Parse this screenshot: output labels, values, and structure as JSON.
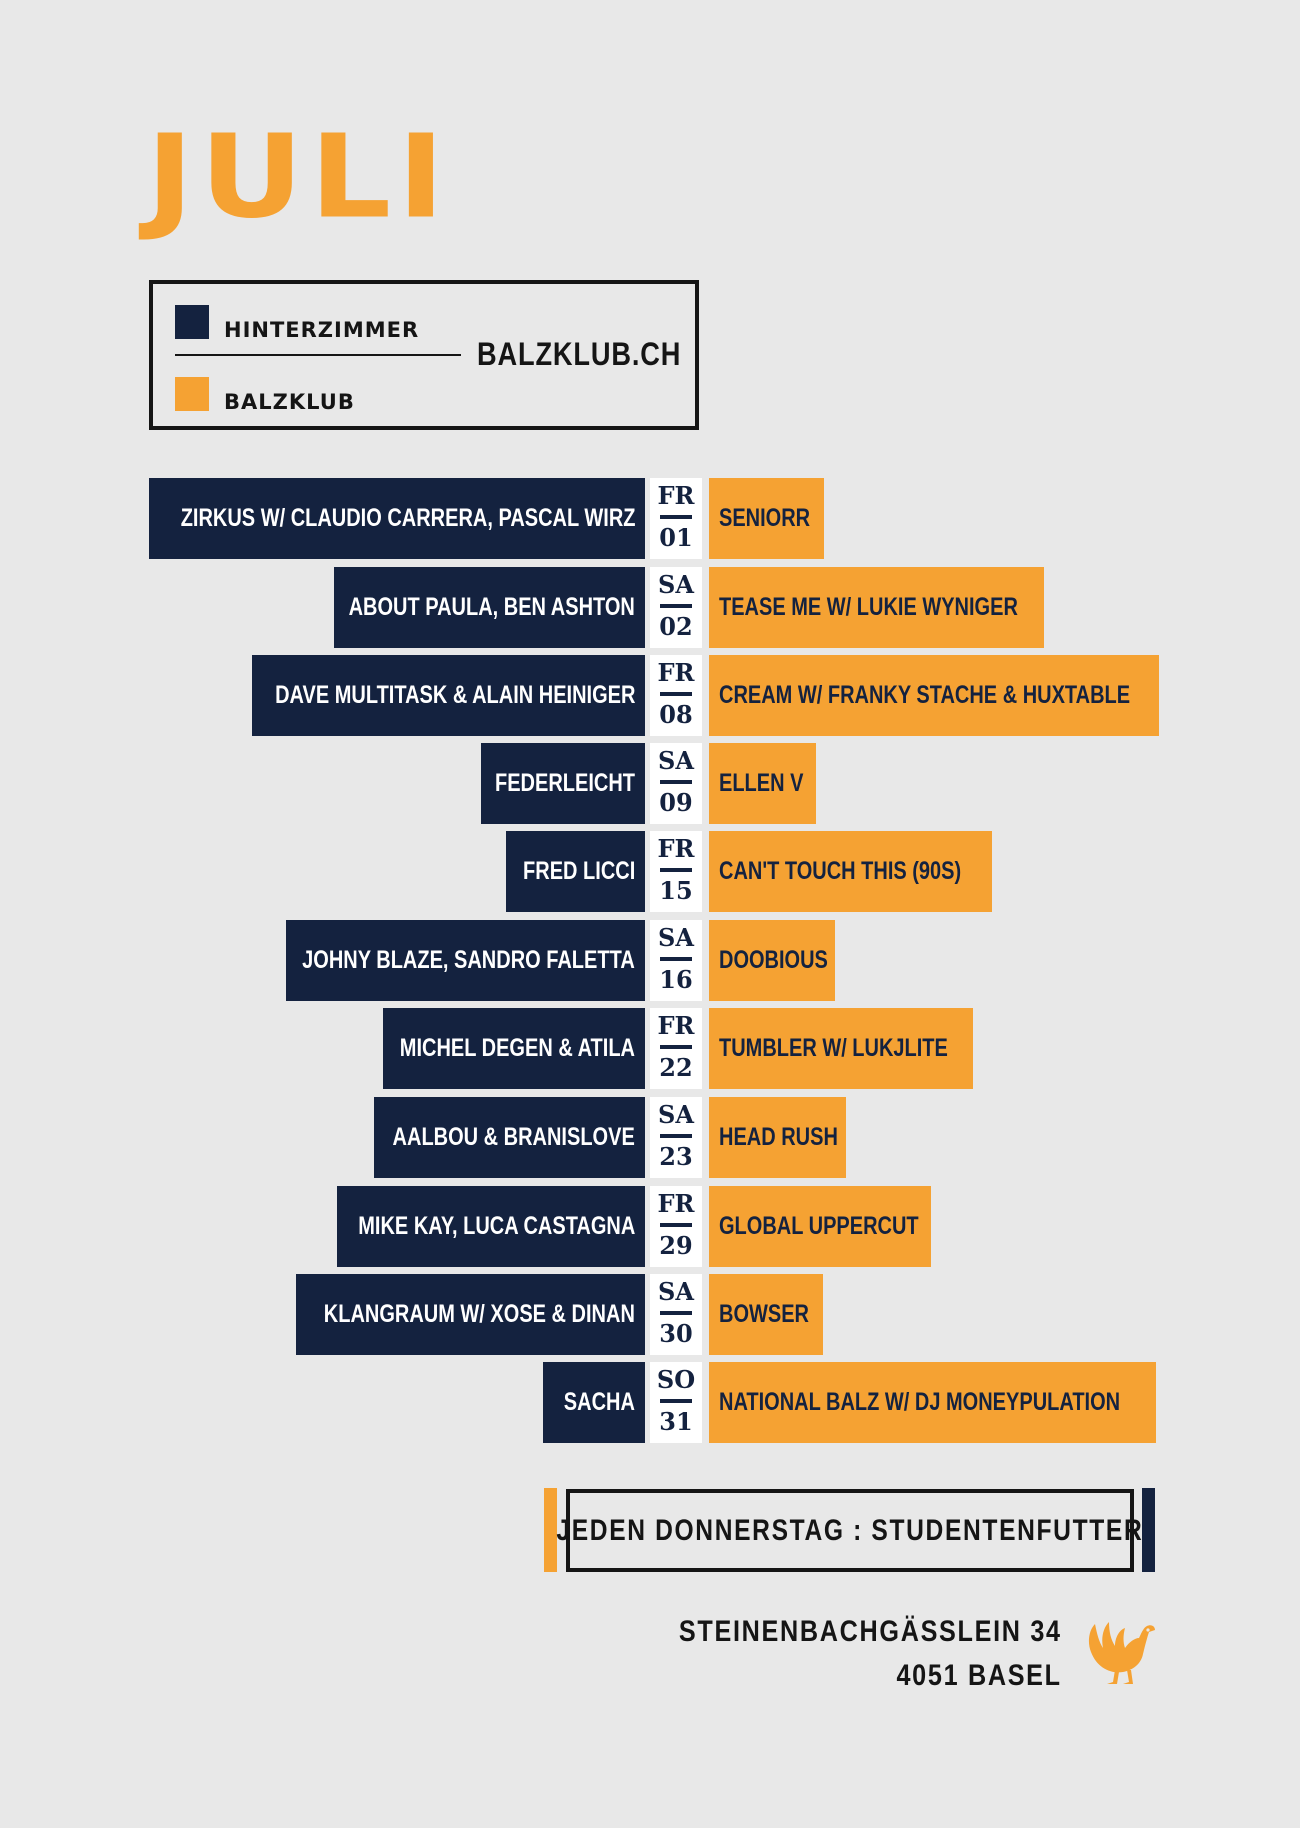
{
  "month": "JULI",
  "legend": {
    "venue_1": "HINTERZIMMER",
    "venue_2": "BALZKLUB",
    "website": "BALZKLUB.CH"
  },
  "colors": {
    "navy": "#14223f",
    "orange": "#f5a233",
    "background": "#e8e8e8"
  },
  "events": [
    {
      "day": "FR",
      "date": "01",
      "hinterzimmer": "ZIRKUS W/ CLAUDIO CARRERA, PASCAL WIRZ",
      "balzklub": "SENIORR"
    },
    {
      "day": "SA",
      "date": "02",
      "hinterzimmer": "ABOUT PAULA, BEN ASHTON",
      "balzklub": "TEASE ME W/ LUKIE WYNIGER"
    },
    {
      "day": "FR",
      "date": "08",
      "hinterzimmer": "DAVE MULTITASK & ALAIN HEINIGER",
      "balzklub": "CREAM W/ FRANKY STACHE & HUXTABLE"
    },
    {
      "day": "SA",
      "date": "09",
      "hinterzimmer": "FEDERLEICHT",
      "balzklub": "ELLEN V"
    },
    {
      "day": "FR",
      "date": "15",
      "hinterzimmer": "FRED LICCI",
      "balzklub": "CAN'T TOUCH THIS (90S)"
    },
    {
      "day": "SA",
      "date": "16",
      "hinterzimmer": "JOHNY BLAZE, SANDRO FALETTA",
      "balzklub": "DOOBIOUS"
    },
    {
      "day": "FR",
      "date": "22",
      "hinterzimmer": "MICHEL DEGEN & ATILA",
      "balzklub": "TUMBLER W/ LUKJLITE"
    },
    {
      "day": "SA",
      "date": "23",
      "hinterzimmer": "AALBOU & BRANISLOVE",
      "balzklub": "HEAD RUSH"
    },
    {
      "day": "FR",
      "date": "29",
      "hinterzimmer": "MIKE KAY, LUCA CASTAGNA",
      "balzklub": "GLOBAL UPPERCUT"
    },
    {
      "day": "SA",
      "date": "30",
      "hinterzimmer": "KLANGRAUM W/ XOSE & DINAN",
      "balzklub": "BOWSER"
    },
    {
      "day": "SO",
      "date": "31",
      "hinterzimmer": "SACHA",
      "balzklub": "NATIONAL BALZ W/ DJ MONEYPULATION"
    }
  ],
  "weekly": "JEDEN DONNERSTAG : STUDENTENFUTTER",
  "address": {
    "street": "STEINENBACHGÄSSLEIN 34",
    "city": "4051 BASEL"
  },
  "logo_icon": "capercaillie-bird-icon"
}
